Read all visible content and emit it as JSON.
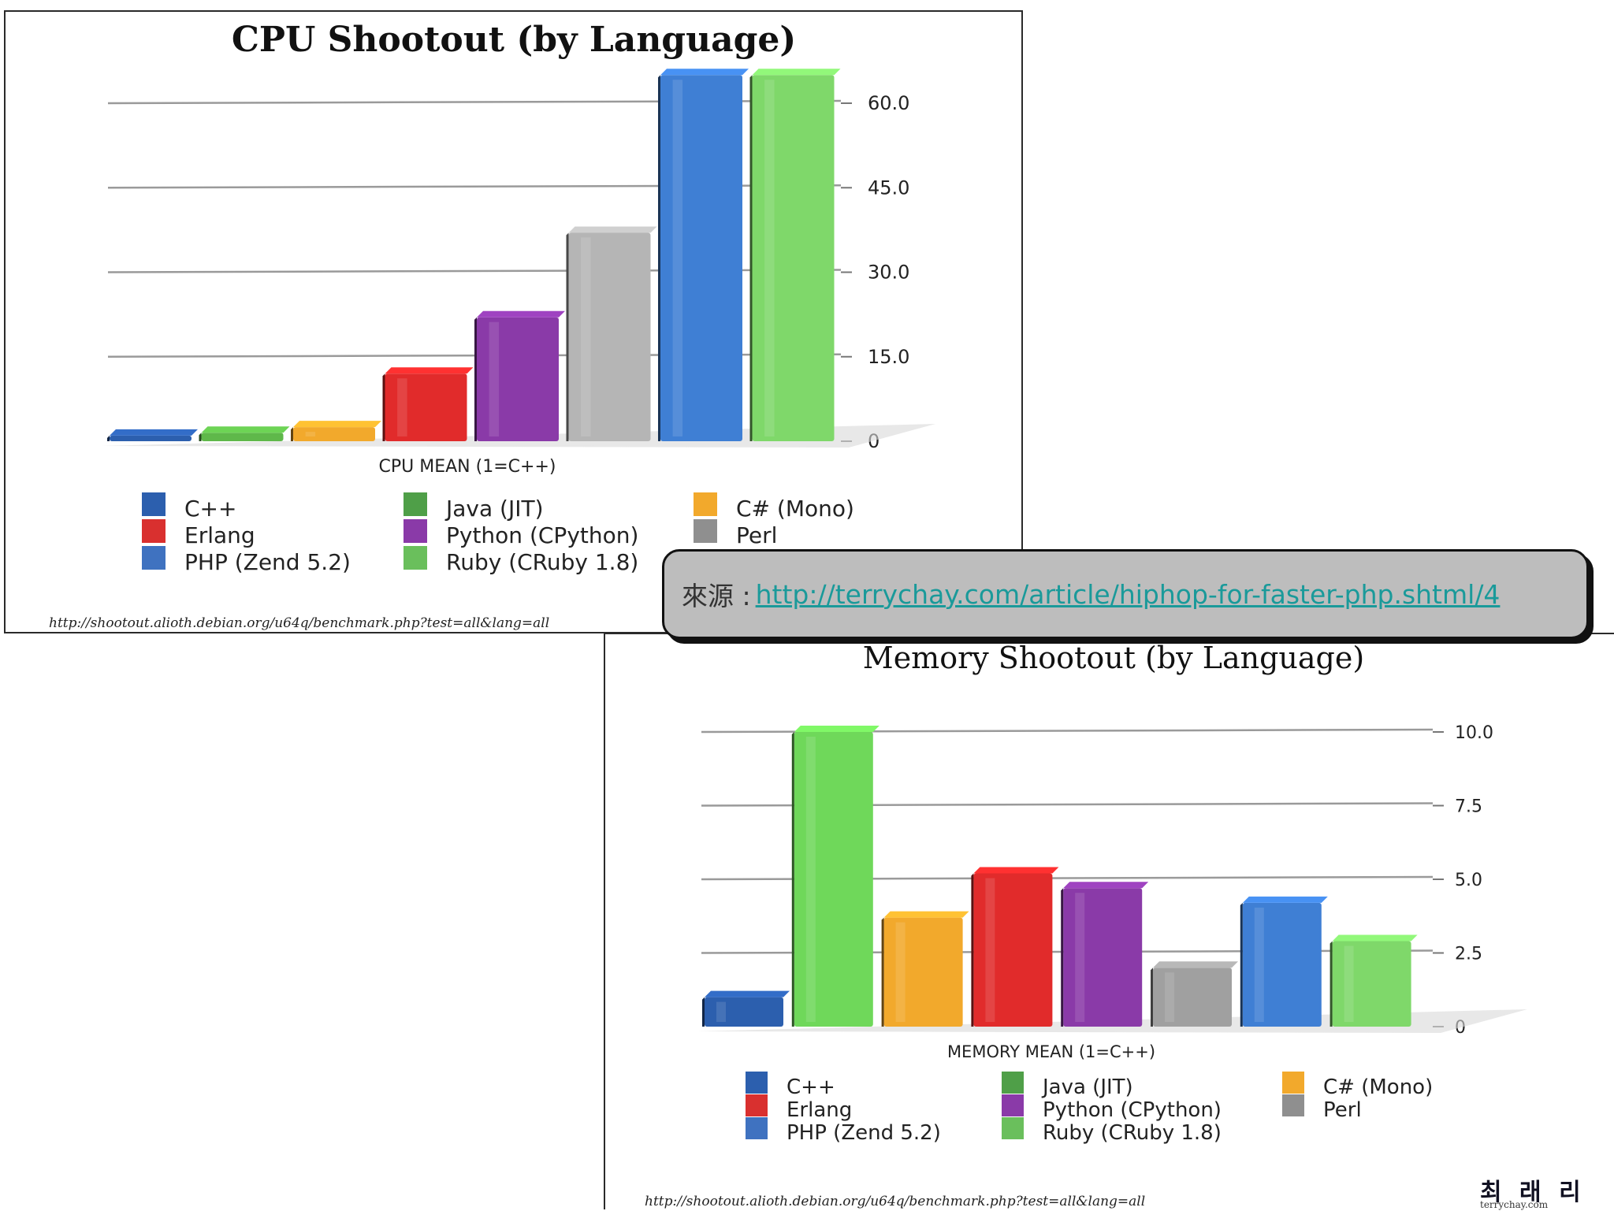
{
  "source": {
    "label": "來源 :",
    "url": "http://terrychay.com/article/hiphop-for-faster-php.shtml/4"
  },
  "watermark": {
    "logo": "최 래 리",
    "domain": "terrychay.com"
  },
  "chart_data": [
    {
      "type": "bar",
      "title": "CPU Shootout (by Language)",
      "xlabel": "CPU MEAN (1=C++)",
      "ylabel": "",
      "ylim": [
        0,
        60
      ],
      "yticks": [
        "0",
        "15.0",
        "30.0",
        "45.0",
        "60.0"
      ],
      "axis_position": "right",
      "grid": true,
      "categories": [
        "C++",
        "Java (JIT)",
        "C# (Mono)",
        "Erlang",
        "Python (CPython)",
        "Perl",
        "PHP (Zend 5.2)",
        "Ruby (CRuby 1.8)"
      ],
      "values": [
        1.0,
        1.5,
        2.5,
        12.0,
        22.0,
        37.0,
        65.0,
        65.0
      ],
      "colors": [
        "#2c5fae",
        "#5fb84a",
        "#f2a92c",
        "#e12b2b",
        "#8a3aa8",
        "#b5b5b5",
        "#3f7fd4",
        "#7fd86a"
      ],
      "legend": [
        {
          "label": "C++",
          "color": "#2c5fae"
        },
        {
          "label": "Erlang",
          "color": "#d9302f"
        },
        {
          "label": "PHP (Zend 5.2)",
          "color": "#3f72c0"
        },
        {
          "label": "Java (JIT)",
          "color": "#4f9f48"
        },
        {
          "label": "Python (CPython)",
          "color": "#8a3aa8"
        },
        {
          "label": "Ruby (CRuby 1.8)",
          "color": "#6abf5c"
        },
        {
          "label": "C# (Mono)",
          "color": "#f2a92c"
        },
        {
          "label": "Perl",
          "color": "#8f8f8f"
        }
      ],
      "legend_placement": "bottom",
      "footer": "http://shootout.alioth.debian.org/u64q/benchmark.php?test=all&lang=all"
    },
    {
      "type": "bar",
      "title": "Memory Shootout (by Language)",
      "xlabel": "MEMORY MEAN (1=C++)",
      "ylabel": "",
      "ylim": [
        0,
        10
      ],
      "yticks": [
        "0",
        "2.5",
        "5.0",
        "7.5",
        "10.0"
      ],
      "axis_position": "right",
      "grid": true,
      "categories": [
        "C++",
        "Java (JIT)",
        "C# (Mono)",
        "Erlang",
        "Python (CPython)",
        "Perl",
        "PHP (Zend 5.2)",
        "Ruby (CRuby 1.8)"
      ],
      "values": [
        1.0,
        10.0,
        3.7,
        5.2,
        4.7,
        2.0,
        4.2,
        2.9
      ],
      "colors": [
        "#2c5fae",
        "#6fd85a",
        "#f2a92c",
        "#e12b2b",
        "#8a3aa8",
        "#a0a0a0",
        "#3f7fd4",
        "#7fd86a"
      ],
      "legend": [
        {
          "label": "C++",
          "color": "#2c5fae"
        },
        {
          "label": "Erlang",
          "color": "#d9302f"
        },
        {
          "label": "PHP (Zend 5.2)",
          "color": "#3f72c0"
        },
        {
          "label": "Java (JIT)",
          "color": "#4f9f48"
        },
        {
          "label": "Python (CPython)",
          "color": "#8a3aa8"
        },
        {
          "label": "Ruby (CRuby 1.8)",
          "color": "#6abf5c"
        },
        {
          "label": "C# (Mono)",
          "color": "#f2a92c"
        },
        {
          "label": "Perl",
          "color": "#8f8f8f"
        }
      ],
      "legend_placement": "bottom",
      "footer": "http://shootout.alioth.debian.org/u64q/benchmark.php?test=all&lang=all"
    }
  ]
}
